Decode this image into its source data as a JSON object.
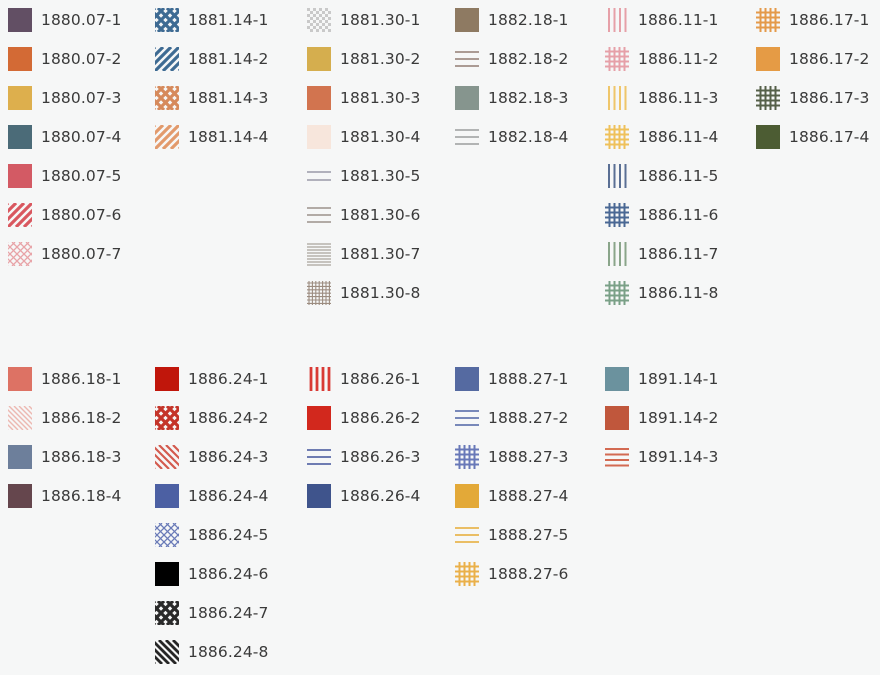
{
  "legend": {
    "groups": [
      {
        "items": [
          {
            "label": "1880.07-1",
            "pattern": "solid",
            "color": "#624f64"
          },
          {
            "label": "1880.07-2",
            "pattern": "solid",
            "color": "#d36a35"
          },
          {
            "label": "1880.07-3",
            "pattern": "solid",
            "color": "#ddaf4d"
          },
          {
            "label": "1880.07-4",
            "pattern": "solid",
            "color": "#4b6b78"
          },
          {
            "label": "1880.07-5",
            "pattern": "solid",
            "color": "#d35a64"
          },
          {
            "label": "1880.07-6",
            "pattern": "diag-wide",
            "color": "#d9575f"
          },
          {
            "label": "1880.07-7",
            "pattern": "crosshatch-thin",
            "color": "#e8a4a8"
          }
        ]
      },
      {
        "items": [
          {
            "label": "1881.14-1",
            "pattern": "crosshatch-bold",
            "color": "#3e6b93"
          },
          {
            "label": "1881.14-2",
            "pattern": "diag-wide",
            "color": "#3e6b93"
          },
          {
            "label": "1881.14-3",
            "pattern": "crosshatch-bold",
            "color": "#d68a5c"
          },
          {
            "label": "1881.14-4",
            "pattern": "diag-wide",
            "color": "#e29a6c"
          }
        ]
      },
      {
        "items": [
          {
            "label": "1881.30-1",
            "pattern": "checker",
            "color": "#c9c9c9"
          },
          {
            "label": "1881.30-2",
            "pattern": "solid",
            "color": "#d5ae4e"
          },
          {
            "label": "1881.30-3",
            "pattern": "solid",
            "color": "#d2744f"
          },
          {
            "label": "1881.30-4",
            "pattern": "solid",
            "color": "#f7e6dc"
          },
          {
            "label": "1881.30-5",
            "pattern": "hlines-2",
            "color": "#9a9aa8"
          },
          {
            "label": "1881.30-6",
            "pattern": "hlines-3",
            "color": "#a8a09b"
          },
          {
            "label": "1881.30-7",
            "pattern": "hlines-dense",
            "color": "#aaa49d"
          },
          {
            "label": "1881.30-8",
            "pattern": "grid-dense",
            "color": "#9c8c80"
          }
        ]
      },
      {
        "items": [
          {
            "label": "1882.18-1",
            "pattern": "solid",
            "color": "#8e7a62"
          },
          {
            "label": "1882.18-2",
            "pattern": "hlines-3",
            "color": "#a08e86"
          },
          {
            "label": "1882.18-3",
            "pattern": "solid",
            "color": "#86958e"
          },
          {
            "label": "1882.18-4",
            "pattern": "hlines-3",
            "color": "#a8aaab"
          }
        ]
      },
      {
        "items": [
          {
            "label": "1886.11-1",
            "pattern": "vlines",
            "color": "#e6a0a8"
          },
          {
            "label": "1886.11-2",
            "pattern": "grid",
            "color": "#e6a0a8"
          },
          {
            "label": "1886.11-3",
            "pattern": "vlines",
            "color": "#efc66a"
          },
          {
            "label": "1886.11-4",
            "pattern": "grid",
            "color": "#efc15a"
          },
          {
            "label": "1886.11-5",
            "pattern": "vlines",
            "color": "#5a6f94"
          },
          {
            "label": "1886.11-6",
            "pattern": "grid",
            "color": "#4a6894"
          },
          {
            "label": "1886.11-7",
            "pattern": "vlines",
            "color": "#8aa58a"
          },
          {
            "label": "1886.11-8",
            "pattern": "grid",
            "color": "#7aa087"
          }
        ]
      },
      {
        "items": [
          {
            "label": "1886.17-1",
            "pattern": "grid",
            "color": "#e49a4a"
          },
          {
            "label": "1886.17-2",
            "pattern": "solid",
            "color": "#e59b45"
          },
          {
            "label": "1886.17-3",
            "pattern": "grid",
            "color": "#556049"
          },
          {
            "label": "1886.17-4",
            "pattern": "solid",
            "color": "#4c5c33"
          }
        ]
      },
      {
        "items": [
          {
            "label": "1886.18-1",
            "pattern": "solid",
            "color": "#dd7264"
          },
          {
            "label": "1886.18-2",
            "pattern": "diag-thin",
            "color": "#ecb8b1"
          },
          {
            "label": "1886.18-3",
            "pattern": "solid",
            "color": "#6d7f9b"
          },
          {
            "label": "1886.18-4",
            "pattern": "solid",
            "color": "#65464d"
          }
        ]
      },
      {
        "items": [
          {
            "label": "1886.24-1",
            "pattern": "solid",
            "color": "#c0160b"
          },
          {
            "label": "1886.24-2",
            "pattern": "crosshatch-bold",
            "color": "#c4352a"
          },
          {
            "label": "1886.24-3",
            "pattern": "diag-bs",
            "color": "#d35a4e"
          },
          {
            "label": "1886.24-4",
            "pattern": "solid",
            "color": "#4c60a3"
          },
          {
            "label": "1886.24-5",
            "pattern": "crosshatch-thin",
            "color": "#6a7bb8"
          },
          {
            "label": "1886.24-6",
            "pattern": "solid",
            "color": "#000000"
          },
          {
            "label": "1886.24-7",
            "pattern": "crosshatch-bold",
            "color": "#2a2a2a"
          },
          {
            "label": "1886.24-8",
            "pattern": "diag-bs-wide",
            "color": "#262626"
          }
        ]
      },
      {
        "items": [
          {
            "label": "1886.26-1",
            "pattern": "vlines-bold",
            "color": "#d93a35"
          },
          {
            "label": "1886.26-2",
            "pattern": "solid",
            "color": "#d2281d"
          },
          {
            "label": "1886.26-3",
            "pattern": "hlines-3",
            "color": "#5a6aa8"
          },
          {
            "label": "1886.26-4",
            "pattern": "solid",
            "color": "#3f548c"
          }
        ]
      },
      {
        "items": [
          {
            "label": "1888.27-1",
            "pattern": "solid",
            "color": "#556aa1"
          },
          {
            "label": "1888.27-2",
            "pattern": "hlines-3",
            "color": "#6678b0"
          },
          {
            "label": "1888.27-3",
            "pattern": "grid",
            "color": "#6878b8"
          },
          {
            "label": "1888.27-4",
            "pattern": "solid",
            "color": "#e3a938"
          },
          {
            "label": "1888.27-5",
            "pattern": "hlines-3",
            "color": "#e8b650"
          },
          {
            "label": "1888.27-6",
            "pattern": "grid",
            "color": "#eab04a"
          }
        ]
      },
      {
        "items": [
          {
            "label": "1891.14-1",
            "pattern": "solid",
            "color": "#6b929e"
          },
          {
            "label": "1891.14-2",
            "pattern": "solid",
            "color": "#c0573c"
          },
          {
            "label": "1891.14-3",
            "pattern": "hlines-4",
            "color": "#d36a52"
          }
        ]
      }
    ]
  }
}
